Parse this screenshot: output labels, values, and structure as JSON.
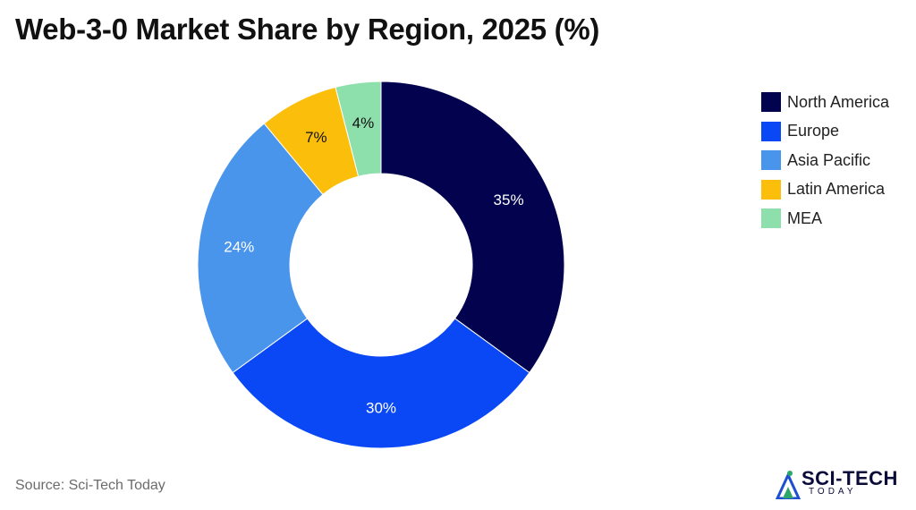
{
  "title": "Web-3-0 Market Share by Region, 2025 (%)",
  "source": "Source: Sci-Tech Today",
  "logo": {
    "main": "SCI-TECH",
    "sub": "TODAY"
  },
  "chart_data": {
    "type": "pie",
    "variant": "donut",
    "title": "Web-3-0 Market Share by Region, 2025 (%)",
    "categories": [
      "North America",
      "Europe",
      "Asia Pacific",
      "Latin America",
      "MEA"
    ],
    "values": [
      35,
      30,
      24,
      7,
      4
    ],
    "labels": [
      "35%",
      "30%",
      "24%",
      "7%",
      "4%"
    ],
    "colors": [
      "#02024f",
      "#0a48f5",
      "#4a95ec",
      "#fbbf0b",
      "#8ddfac"
    ],
    "label_colors": [
      "#ffffff",
      "#ffffff",
      "#ffffff",
      "#111111",
      "#111111"
    ],
    "legend_position": "right",
    "start": "top, clockwise"
  }
}
